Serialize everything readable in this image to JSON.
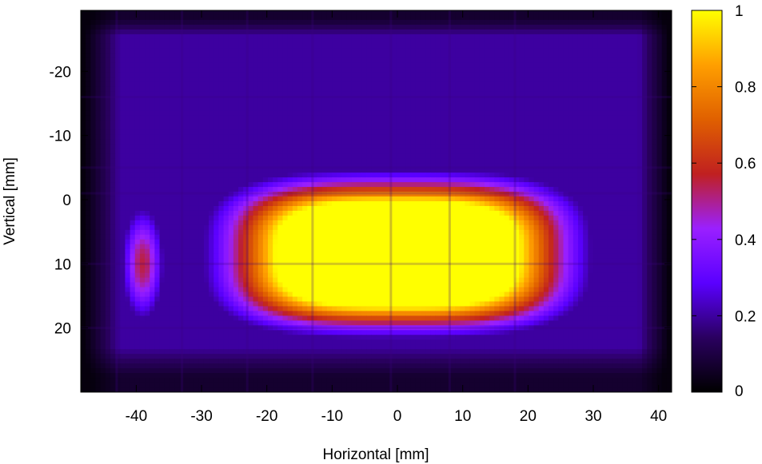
{
  "chart_data": {
    "type": "heatmap",
    "title": "",
    "xlabel": "Horizontal [mm]",
    "ylabel": "Vertical [mm]",
    "xlim": [
      -48.5,
      42
    ],
    "ylim": [
      30,
      -29.5
    ],
    "y_axis_inverted": true,
    "xticks": [
      -40,
      -30,
      -20,
      -10,
      0,
      10,
      20,
      30,
      40
    ],
    "yticks": [
      -20,
      -10,
      0,
      10,
      20
    ],
    "colorbar": {
      "min": 0,
      "max": 1,
      "ticks": [
        0,
        0.2,
        0.4,
        0.6,
        0.8,
        1
      ],
      "tick_labels": [
        "0",
        "0.2",
        "0.4",
        "0.6",
        "0.8",
        "1"
      ],
      "palette": [
        "#000000",
        "#2a0060",
        "#5a00ff",
        "#9a20ff",
        "#c02020",
        "#e06000",
        "#ff9f00",
        "#ffff00"
      ]
    },
    "background_level": 0.2,
    "hotspots": [
      {
        "x": 0,
        "y": 8.5,
        "sx": 17,
        "sy": 7.5,
        "value": 1.0,
        "shape": "flat-top"
      },
      {
        "x": -39,
        "y": 10,
        "sx": 2.2,
        "sy": 6,
        "value": 0.55,
        "shape": "gaussian"
      },
      {
        "x": 19,
        "y": 8,
        "sx": 1.5,
        "sy": 3,
        "value": 0.5,
        "shape": "gaussian"
      }
    ],
    "grid_lines_x": [
      -43,
      -33,
      -23,
      -13,
      -1,
      8,
      18
    ],
    "grid_lines_y": [
      -16,
      -5,
      -1,
      10,
      20
    ]
  }
}
